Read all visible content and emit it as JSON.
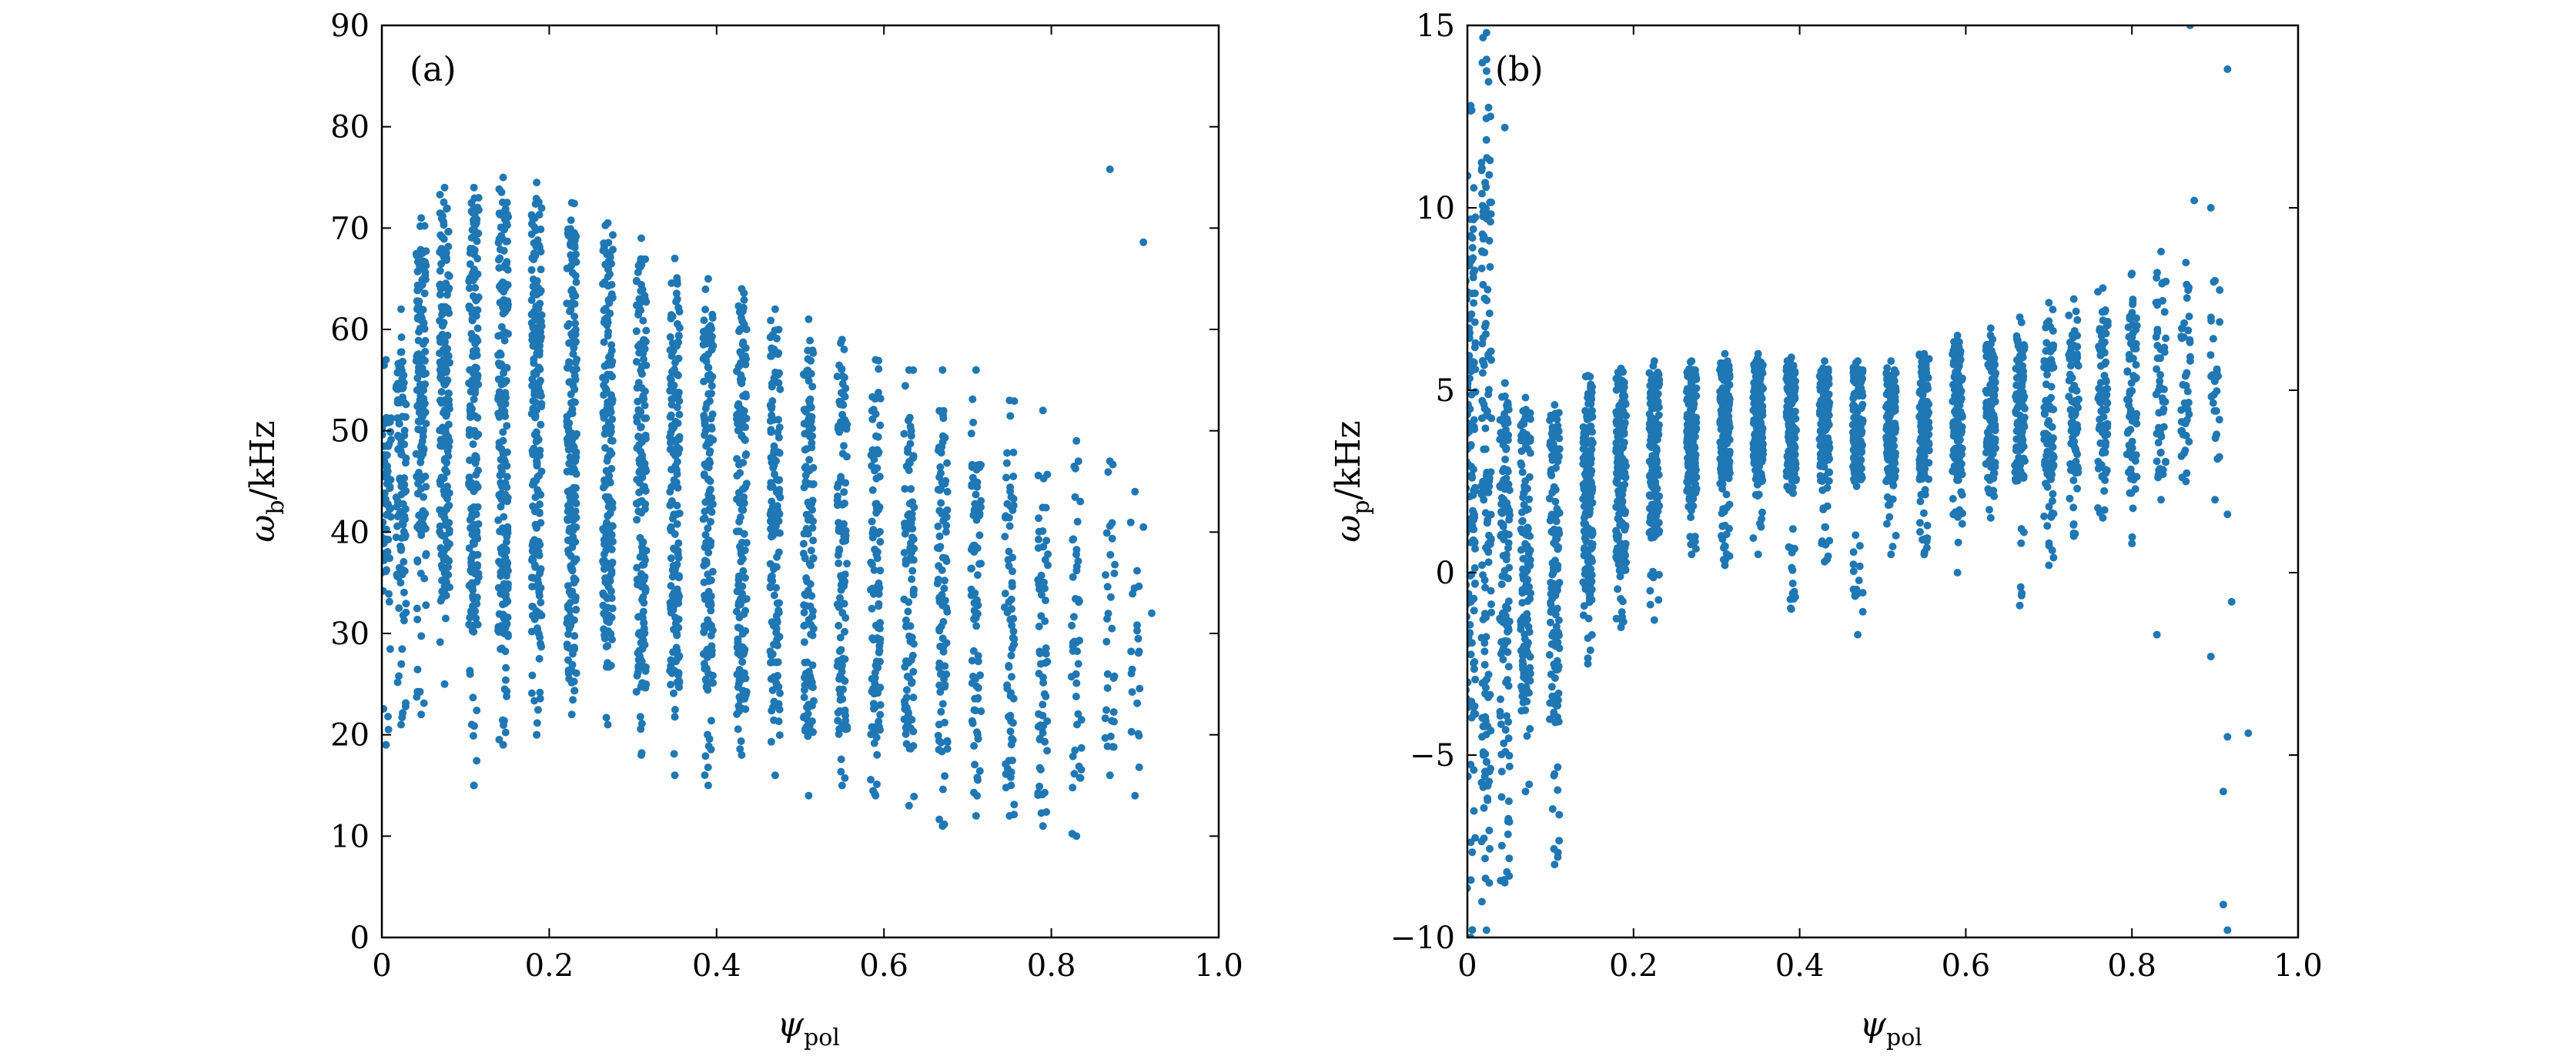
{
  "colors": {
    "marker": "#1f77b4",
    "axes": "#000000",
    "background": "#ffffff"
  },
  "chart_data": [
    {
      "type": "scatter",
      "panel_label": "(a)",
      "xlabel": {
        "symbol": "ψ",
        "subscript": "pol"
      },
      "ylabel": {
        "symbol": "ω",
        "subscript": "b",
        "unit": "/kHz"
      },
      "xlim": [
        0,
        1.0
      ],
      "ylim": [
        0,
        90
      ],
      "xticks": [
        0,
        0.2,
        0.4,
        0.6,
        0.8,
        1.0
      ],
      "xtick_labels": [
        "0",
        "0.2",
        "0.4",
        "0.6",
        "0.8",
        "1.0"
      ],
      "yticks": [
        0,
        10,
        20,
        30,
        40,
        50,
        60,
        70,
        80,
        90
      ],
      "ytick_labels": [
        "0",
        "10",
        "20",
        "30",
        "40",
        "50",
        "60",
        "70",
        "80",
        "90"
      ],
      "grid": false,
      "columns": [
        {
          "x": 0.005,
          "lo": 19,
          "hi": 57,
          "core": [
            36,
            52
          ],
          "n": 70
        },
        {
          "x": 0.023,
          "lo": 21,
          "hi": 62,
          "core": [
            35,
            58
          ],
          "n": 110
        },
        {
          "x": 0.047,
          "lo": 22,
          "hi": 71,
          "core": [
            40,
            68
          ],
          "n": 150
        },
        {
          "x": 0.075,
          "lo": 25,
          "hi": 74,
          "core": [
            33,
            72
          ],
          "n": 190
        },
        {
          "x": 0.11,
          "lo": 15,
          "hi": 74,
          "core": [
            30,
            73
          ],
          "n": 200
        },
        {
          "x": 0.145,
          "lo": 19,
          "hi": 75,
          "core": [
            30,
            74
          ],
          "n": 210
        },
        {
          "x": 0.185,
          "lo": 20,
          "hi": 74.5,
          "core": [
            28,
            73
          ],
          "n": 210
        },
        {
          "x": 0.227,
          "lo": 22,
          "hi": 72.5,
          "core": [
            26,
            71
          ],
          "n": 200
        },
        {
          "x": 0.27,
          "lo": 21,
          "hi": 70.5,
          "core": [
            26,
            69
          ],
          "n": 190
        },
        {
          "x": 0.31,
          "lo": 18,
          "hi": 69,
          "core": [
            24,
            67
          ],
          "n": 180
        },
        {
          "x": 0.35,
          "lo": 16,
          "hi": 67,
          "core": [
            24,
            65
          ],
          "n": 170
        },
        {
          "x": 0.39,
          "lo": 15,
          "hi": 65,
          "core": [
            24,
            63
          ],
          "n": 160
        },
        {
          "x": 0.43,
          "lo": 18,
          "hi": 64,
          "core": [
            22,
            62
          ],
          "n": 150
        },
        {
          "x": 0.47,
          "lo": 16,
          "hi": 62,
          "core": [
            22,
            60
          ],
          "n": 140
        },
        {
          "x": 0.51,
          "lo": 14,
          "hi": 61,
          "core": [
            20,
            58
          ],
          "n": 130
        },
        {
          "x": 0.55,
          "lo": 15,
          "hi": 59,
          "core": [
            20,
            56
          ],
          "n": 120
        },
        {
          "x": 0.59,
          "lo": 14,
          "hi": 57,
          "core": [
            18,
            54
          ],
          "n": 110
        },
        {
          "x": 0.63,
          "lo": 13,
          "hi": 56,
          "core": [
            18,
            52
          ],
          "n": 100
        },
        {
          "x": 0.67,
          "lo": 11,
          "hi": 56,
          "core": [
            16,
            52
          ],
          "n": 90
        },
        {
          "x": 0.71,
          "lo": 12,
          "hi": 56,
          "core": [
            15,
            50
          ],
          "n": 80
        },
        {
          "x": 0.75,
          "lo": 12,
          "hi": 53,
          "core": [
            14,
            48
          ],
          "n": 70
        },
        {
          "x": 0.79,
          "lo": 11,
          "hi": 52,
          "core": [
            14,
            46
          ],
          "n": 60
        },
        {
          "x": 0.83,
          "lo": 10,
          "hi": 49,
          "core": [
            14,
            44
          ],
          "n": 45
        },
        {
          "x": 0.87,
          "lo": 16,
          "hi": 47,
          "core": [
            18,
            42
          ],
          "n": 30
        },
        {
          "x": 0.9,
          "lo": 14,
          "hi": 44,
          "core": [
            18,
            40
          ],
          "n": 20
        }
      ],
      "points": [
        {
          "x": 0.87,
          "y": 75.8
        },
        {
          "x": 0.91,
          "y": 68.6
        },
        {
          "x": 0.92,
          "y": 32.0
        },
        {
          "x": 0.11,
          "y": 15.0
        },
        {
          "x": 0.185,
          "y": 20.0
        },
        {
          "x": 0.91,
          "y": 40.5
        }
      ]
    },
    {
      "type": "scatter",
      "panel_label": "(b)",
      "xlabel": {
        "symbol": "ψ",
        "subscript": "pol"
      },
      "ylabel": {
        "symbol": "ω",
        "subscript": "p",
        "unit": "/kHz"
      },
      "xlim": [
        0,
        1.0
      ],
      "ylim": [
        -10,
        15
      ],
      "xticks": [
        0,
        0.2,
        0.4,
        0.6,
        0.8,
        1.0
      ],
      "xtick_labels": [
        "0",
        "0.2",
        "0.4",
        "0.6",
        "0.8",
        "1.0"
      ],
      "yticks": [
        -10,
        -5,
        0,
        5,
        10,
        15
      ],
      "ytick_labels": [
        "−10",
        "−5",
        "0",
        "5",
        "10",
        "15"
      ],
      "grid": false,
      "columns": [
        {
          "x": 0.004,
          "lo": -10,
          "hi": 12.8,
          "core": [
            -4,
            10
          ],
          "n": 150
        },
        {
          "x": 0.023,
          "lo": -9.8,
          "hi": 14.8,
          "core": [
            -6,
            12
          ],
          "n": 160
        },
        {
          "x": 0.045,
          "lo": -8.5,
          "hi": 5.2,
          "core": [
            -5,
            5
          ],
          "n": 140
        },
        {
          "x": 0.07,
          "lo": -6,
          "hi": 4.8,
          "core": [
            -4,
            4.5
          ],
          "n": 140
        },
        {
          "x": 0.105,
          "lo": -8,
          "hi": 4.6,
          "core": [
            -4,
            4.4
          ],
          "n": 150
        },
        {
          "x": 0.145,
          "lo": -2.5,
          "hi": 5.4,
          "core": [
            -1,
            5.2
          ],
          "n": 160
        },
        {
          "x": 0.185,
          "lo": -1.5,
          "hi": 5.6,
          "core": [
            0,
            5.4
          ],
          "n": 170
        },
        {
          "x": 0.225,
          "lo": -1.3,
          "hi": 5.8,
          "core": [
            1,
            5.6
          ],
          "n": 170
        },
        {
          "x": 0.27,
          "lo": 0.5,
          "hi": 5.8,
          "core": [
            2,
            5.6
          ],
          "n": 170
        },
        {
          "x": 0.31,
          "lo": 0.2,
          "hi": 6.0,
          "core": [
            2.5,
            5.8
          ],
          "n": 170
        },
        {
          "x": 0.35,
          "lo": 0.5,
          "hi": 6.0,
          "core": [
            2.5,
            5.8
          ],
          "n": 170
        },
        {
          "x": 0.39,
          "lo": -1.0,
          "hi": 5.9,
          "core": [
            2.5,
            5.7
          ],
          "n": 160
        },
        {
          "x": 0.43,
          "lo": 0.3,
          "hi": 5.8,
          "core": [
            2.5,
            5.6
          ],
          "n": 150
        },
        {
          "x": 0.47,
          "lo": -1.7,
          "hi": 5.8,
          "core": [
            2.5,
            5.6
          ],
          "n": 150
        },
        {
          "x": 0.51,
          "lo": 0.5,
          "hi": 5.8,
          "core": [
            2.5,
            5.6
          ],
          "n": 140
        },
        {
          "x": 0.55,
          "lo": 0.5,
          "hi": 6.0,
          "core": [
            2.5,
            5.8
          ],
          "n": 140
        },
        {
          "x": 0.59,
          "lo": 0.0,
          "hi": 6.5,
          "core": [
            2.5,
            6.2
          ],
          "n": 130
        },
        {
          "x": 0.63,
          "lo": 1.5,
          "hi": 6.7,
          "core": [
            2.5,
            6.3
          ],
          "n": 120
        },
        {
          "x": 0.665,
          "lo": -0.9,
          "hi": 7.0,
          "core": [
            2.5,
            6.5
          ],
          "n": 110
        },
        {
          "x": 0.7,
          "lo": 0.2,
          "hi": 7.4,
          "core": [
            2.5,
            7.0
          ],
          "n": 100
        },
        {
          "x": 0.73,
          "lo": 1.0,
          "hi": 7.5,
          "core": [
            2.5,
            7.0
          ],
          "n": 90
        },
        {
          "x": 0.765,
          "lo": 1.5,
          "hi": 7.8,
          "core": [
            2.5,
            7.2
          ],
          "n": 80
        },
        {
          "x": 0.8,
          "lo": 0.8,
          "hi": 8.2,
          "core": [
            2.5,
            7.5
          ],
          "n": 70
        },
        {
          "x": 0.835,
          "lo": 2.0,
          "hi": 8.8,
          "core": [
            2.5,
            8.0
          ],
          "n": 55
        },
        {
          "x": 0.865,
          "lo": 2.5,
          "hi": 8.5,
          "core": [
            3,
            8
          ],
          "n": 40
        },
        {
          "x": 0.9,
          "lo": 2.0,
          "hi": 8.0,
          "core": [
            3,
            7
          ],
          "n": 25
        }
      ],
      "points": [
        {
          "x": 0.87,
          "y": 15.0
        },
        {
          "x": 0.915,
          "y": 13.8
        },
        {
          "x": 0.875,
          "y": 10.2
        },
        {
          "x": 0.895,
          "y": 10.0
        },
        {
          "x": 0.83,
          "y": -1.7
        },
        {
          "x": 0.895,
          "y": -2.3
        },
        {
          "x": 0.94,
          "y": -4.4
        },
        {
          "x": 0.915,
          "y": -4.5
        },
        {
          "x": 0.91,
          "y": -6.0
        },
        {
          "x": 0.91,
          "y": -9.1
        },
        {
          "x": 0.915,
          "y": -9.8
        },
        {
          "x": 0.915,
          "y": 1.6
        },
        {
          "x": 0.92,
          "y": -0.8
        },
        {
          "x": 0.045,
          "y": 12.2
        }
      ]
    }
  ]
}
